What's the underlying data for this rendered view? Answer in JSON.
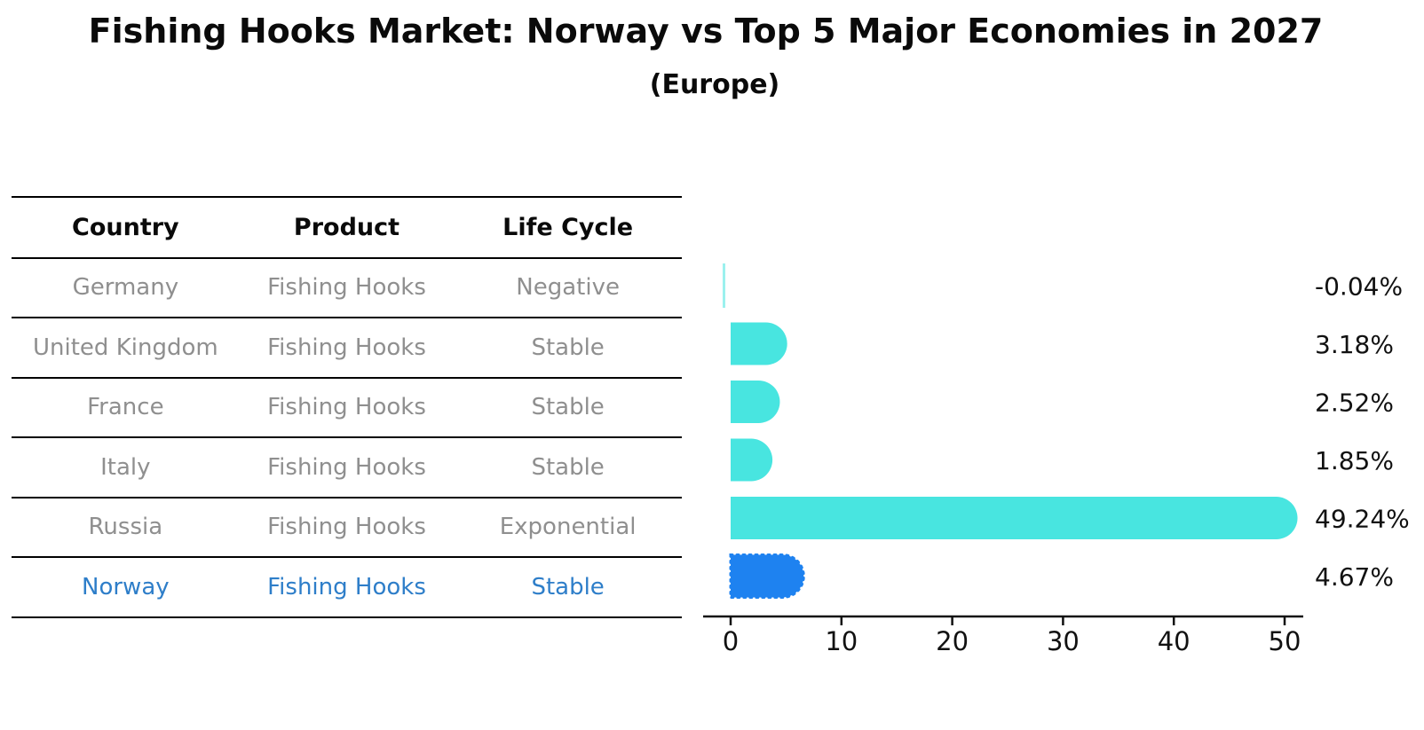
{
  "header": {
    "title": "Fishing Hooks Market: Norway vs Top 5 Major Economies in 2027",
    "subtitle": "(Europe)"
  },
  "table": {
    "columns": [
      "Country",
      "Product",
      "Life Cycle"
    ],
    "rows": [
      {
        "country": "Germany",
        "product": "Fishing Hooks",
        "life_cycle": "Negative",
        "highlight": false
      },
      {
        "country": "United Kingdom",
        "product": "Fishing Hooks",
        "life_cycle": "Stable",
        "highlight": false
      },
      {
        "country": "France",
        "product": "Fishing Hooks",
        "life_cycle": "Stable",
        "highlight": false
      },
      {
        "country": "Italy",
        "product": "Fishing Hooks",
        "life_cycle": "Stable",
        "highlight": false
      },
      {
        "country": "Russia",
        "product": "Fishing Hooks",
        "life_cycle": "Exponential",
        "highlight": false
      },
      {
        "country": "Norway",
        "product": "Fishing Hooks",
        "life_cycle": "Stable",
        "highlight": true
      }
    ]
  },
  "chart_data": {
    "type": "bar",
    "orientation": "horizontal",
    "title": "Fishing Hooks Market: Norway vs Top 5 Major Economies in 2027 (Europe)",
    "categories": [
      "Germany",
      "United Kingdom",
      "France",
      "Italy",
      "Russia",
      "Norway"
    ],
    "values": [
      -0.04,
      3.18,
      2.52,
      1.85,
      49.24,
      4.67
    ],
    "value_labels": [
      "-0.04%",
      "3.18%",
      "2.52%",
      "1.85%",
      "49.24%",
      "4.67%"
    ],
    "xlim": [
      0,
      50
    ],
    "xticks": [
      0,
      10,
      20,
      30,
      40,
      50
    ],
    "xlabel": "",
    "ylabel": "",
    "grid": false,
    "legend": false,
    "bar_color": "#48E5E0",
    "highlight_color": "#1E82F0",
    "highlight_category": "Norway",
    "highlight_text_color": "#2e7ec9",
    "axis_color": "#111111",
    "label_color": "#111111"
  }
}
